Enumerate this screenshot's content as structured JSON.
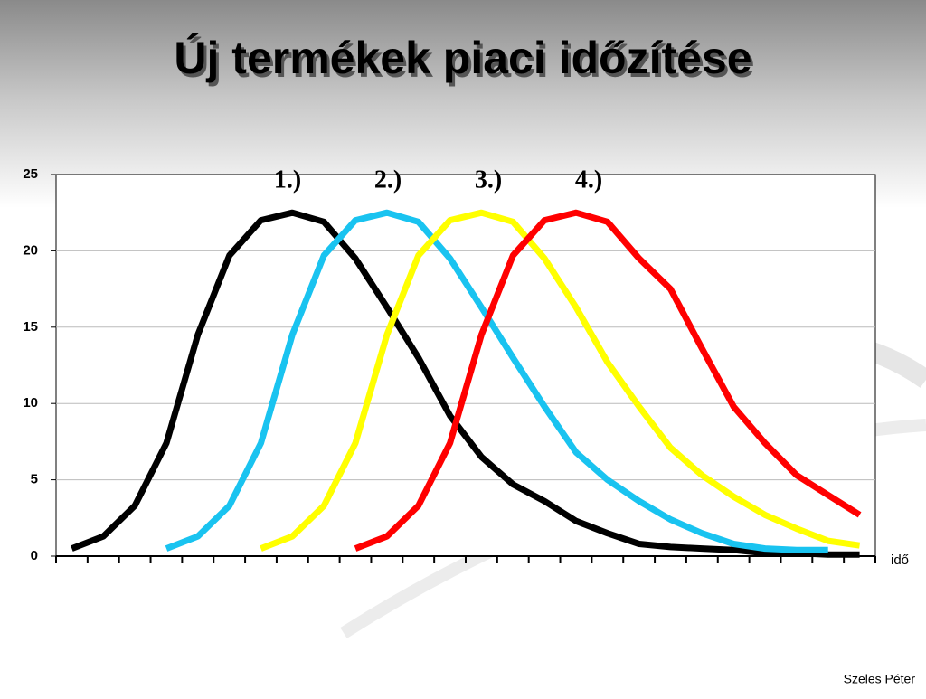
{
  "title": "Új termékek piaci időzítése",
  "author": "Szeles Péter",
  "chart_data": {
    "type": "line",
    "xlabel": "idő",
    "annotations": [
      "1.)",
      "2.)",
      "3.)",
      "4.)"
    ],
    "categories": [
      null,
      null,
      null,
      null,
      null,
      null,
      null,
      null,
      null,
      null,
      null,
      null,
      null,
      null,
      null,
      null,
      null,
      null,
      null,
      null,
      null,
      null,
      null,
      null,
      null,
      null
    ],
    "series": [
      {
        "name": "1.)",
        "color": "#000000",
        "values": [
          0.5,
          1.3,
          3.3,
          7.4,
          14.5,
          19.7,
          22.0,
          22.5,
          21.9,
          19.5,
          16.3,
          13.0,
          9.2,
          6.5,
          4.7,
          3.6,
          2.3,
          1.5,
          0.8,
          0.6,
          0.5,
          0.4,
          0.2,
          0.2,
          0.1,
          0.1
        ]
      },
      {
        "name": "2.)",
        "color": "#19c3f0",
        "values": [
          null,
          null,
          null,
          0.5,
          1.3,
          3.3,
          7.4,
          14.5,
          19.7,
          22.0,
          22.5,
          21.9,
          19.5,
          16.3,
          13.0,
          9.8,
          6.8,
          5.0,
          3.6,
          2.4,
          1.5,
          0.8,
          0.5,
          0.4,
          0.4,
          null
        ]
      },
      {
        "name": "3.)",
        "color": "#ffff00",
        "values": [
          null,
          null,
          null,
          null,
          null,
          null,
          0.5,
          1.3,
          3.3,
          7.4,
          14.5,
          19.7,
          22.0,
          22.5,
          21.9,
          19.5,
          16.3,
          12.7,
          9.8,
          7.1,
          5.3,
          3.9,
          2.7,
          1.8,
          1.0,
          0.7
        ]
      },
      {
        "name": "4.)",
        "color": "#ff0000",
        "values": [
          null,
          null,
          null,
          null,
          null,
          null,
          null,
          null,
          null,
          0.5,
          1.3,
          3.3,
          7.4,
          14.5,
          19.7,
          22.0,
          22.5,
          21.9,
          19.5,
          17.5,
          13.6,
          9.8,
          7.4,
          5.3,
          4.0,
          2.7
        ]
      }
    ],
    "ylim": [
      0,
      25
    ],
    "yticks": [
      0,
      5,
      10,
      15,
      20,
      25
    ],
    "grid": true
  }
}
